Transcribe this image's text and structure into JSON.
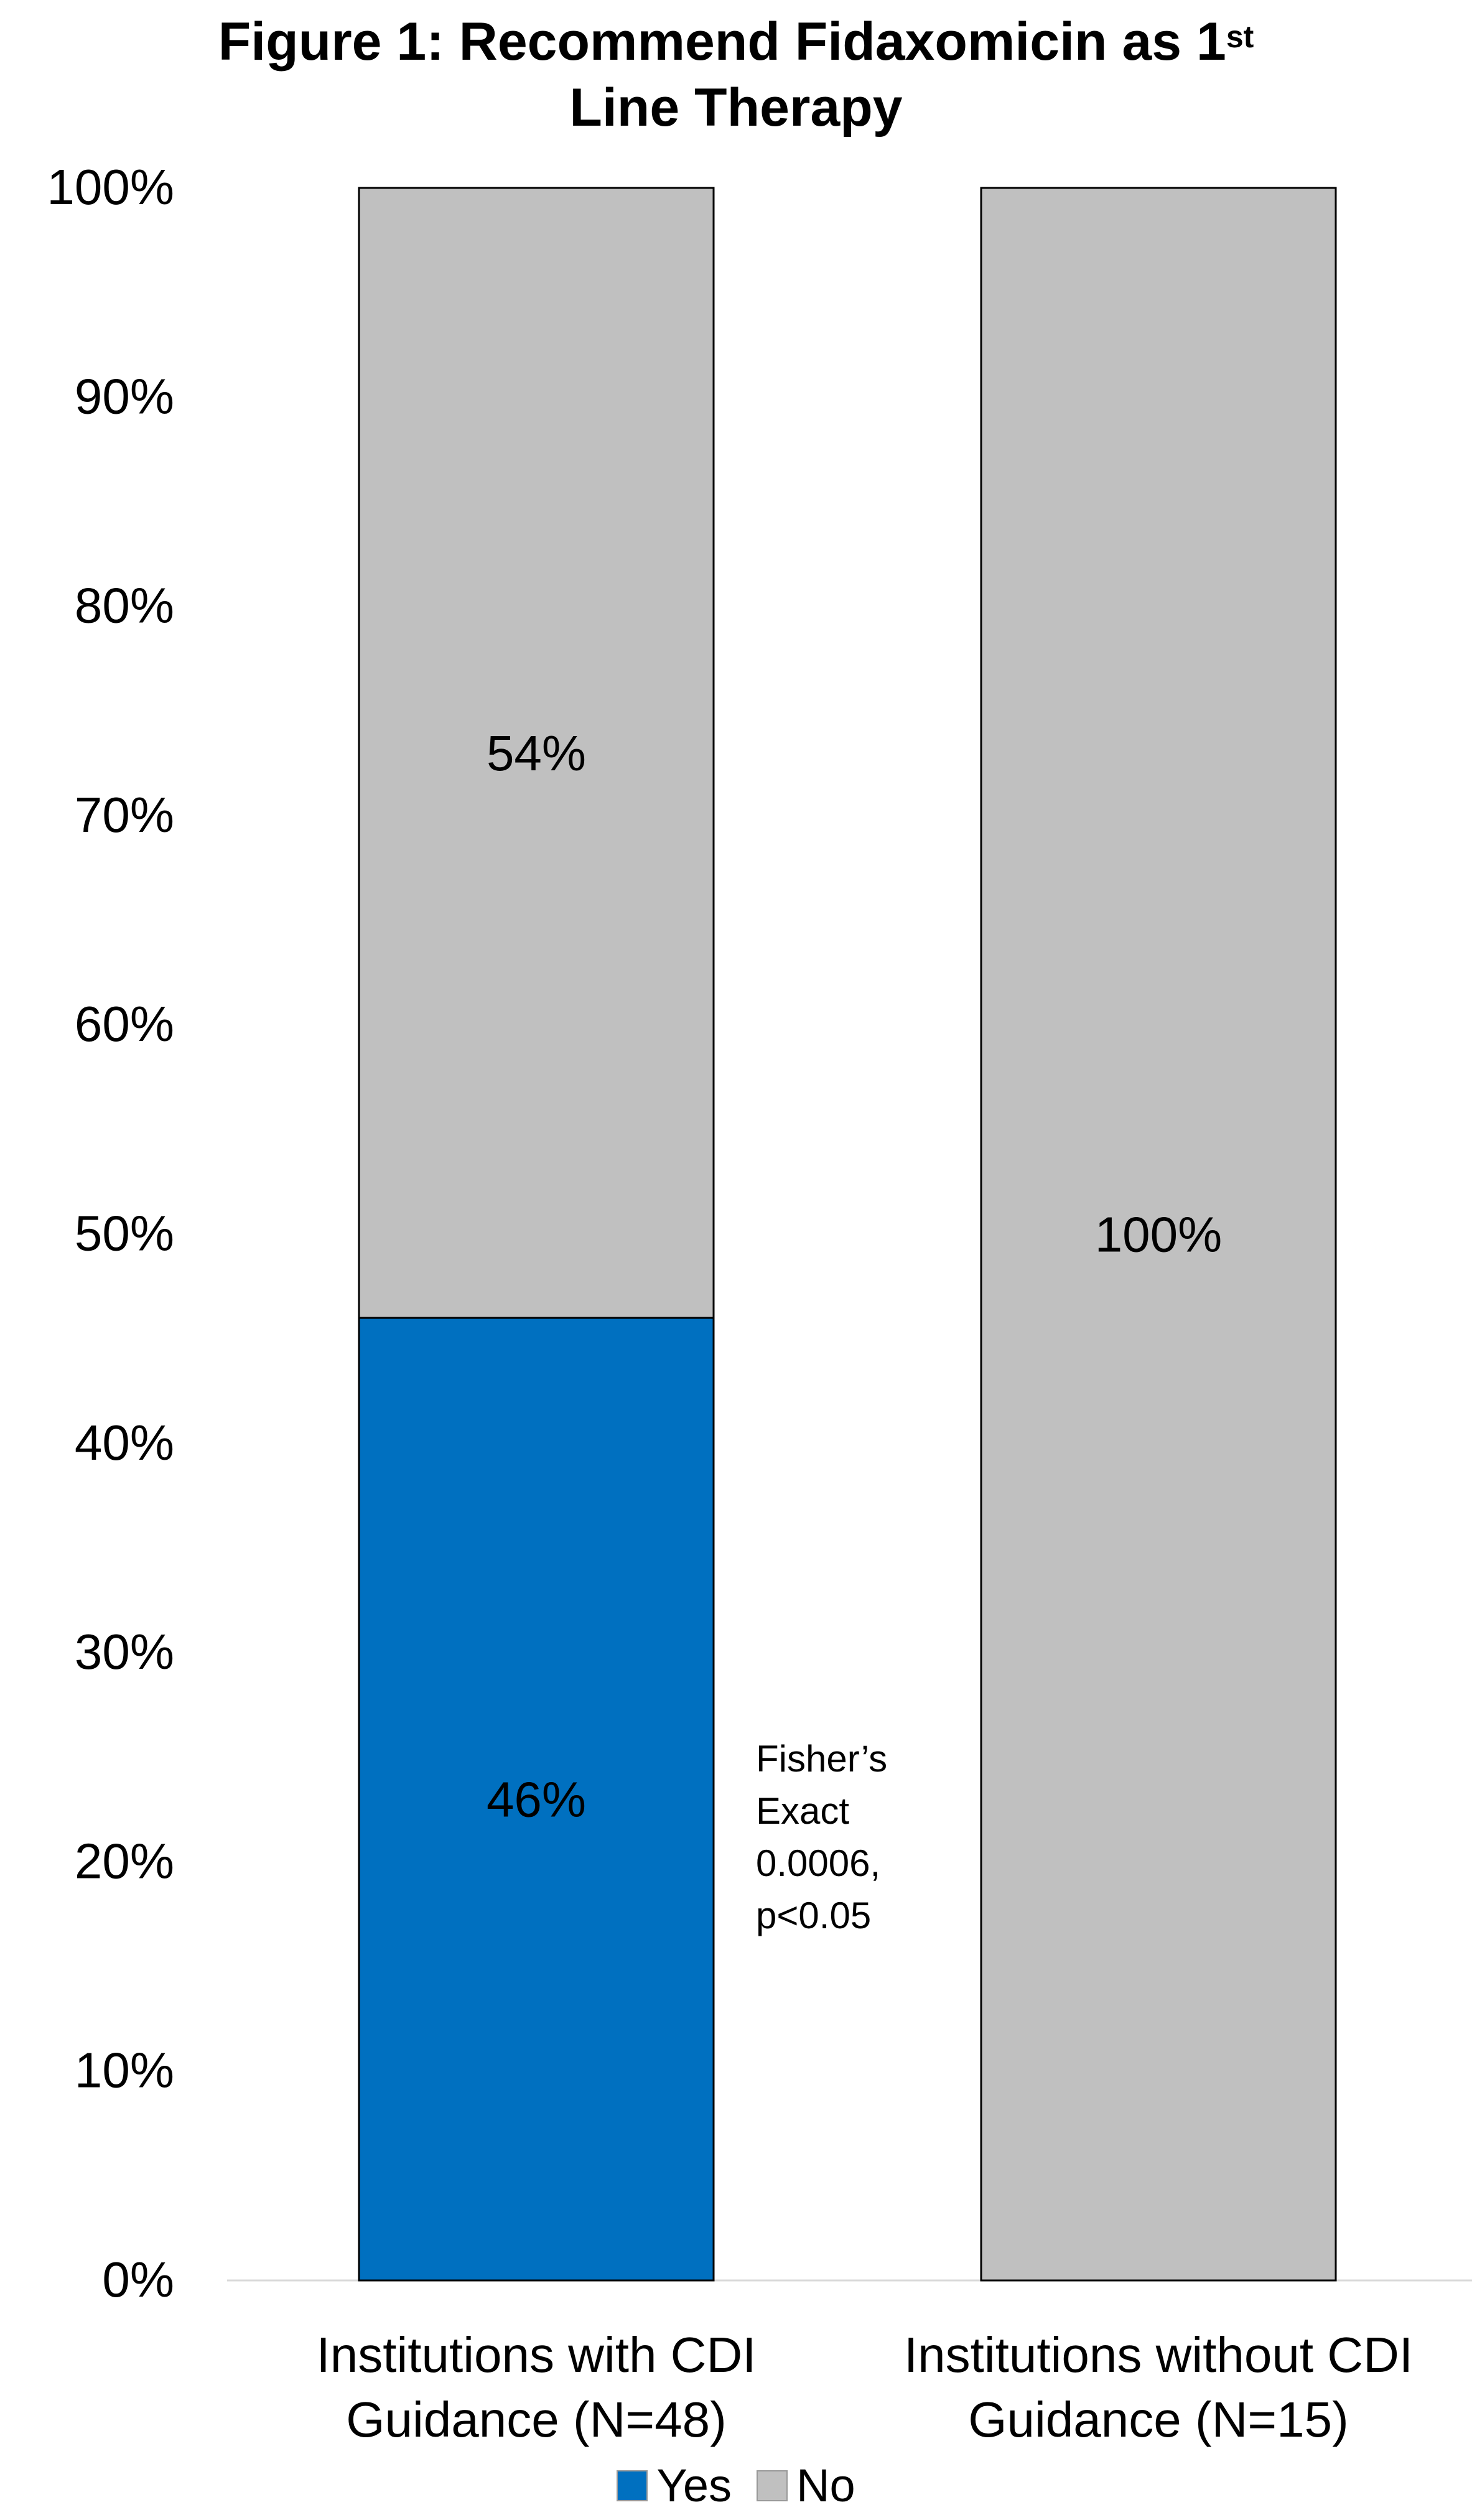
{
  "title_line1": "Figure 1: Recommend Fidaxomicin as 1",
  "title_sup": "st",
  "title_line2": "Line Therapy",
  "annotation": [
    "Fisher’s",
    "Exact",
    "0.0006,",
    "p<0.05"
  ],
  "colors": {
    "yes": "#0070C0",
    "no": "#C0C0C0",
    "axis": "#D9D9D9"
  },
  "chart_data": {
    "type": "bar",
    "stacked": true,
    "categories": [
      [
        "Institutions with CDI",
        "Guidance (N=48)"
      ],
      [
        "Institutions without CDI",
        "Guidance (N=15)"
      ]
    ],
    "series": [
      {
        "name": "Yes",
        "values": [
          46,
          0
        ],
        "labels": [
          "46%",
          ""
        ]
      },
      {
        "name": "No",
        "values": [
          54,
          100
        ],
        "labels": [
          "54%",
          "100%"
        ]
      }
    ],
    "ylim": [
      0,
      100
    ],
    "yticks": [
      "0%",
      "10%",
      "20%",
      "30%",
      "40%",
      "50%",
      "60%",
      "70%",
      "80%",
      "90%",
      "100%"
    ],
    "grid": false,
    "legend_position": "bottom"
  }
}
